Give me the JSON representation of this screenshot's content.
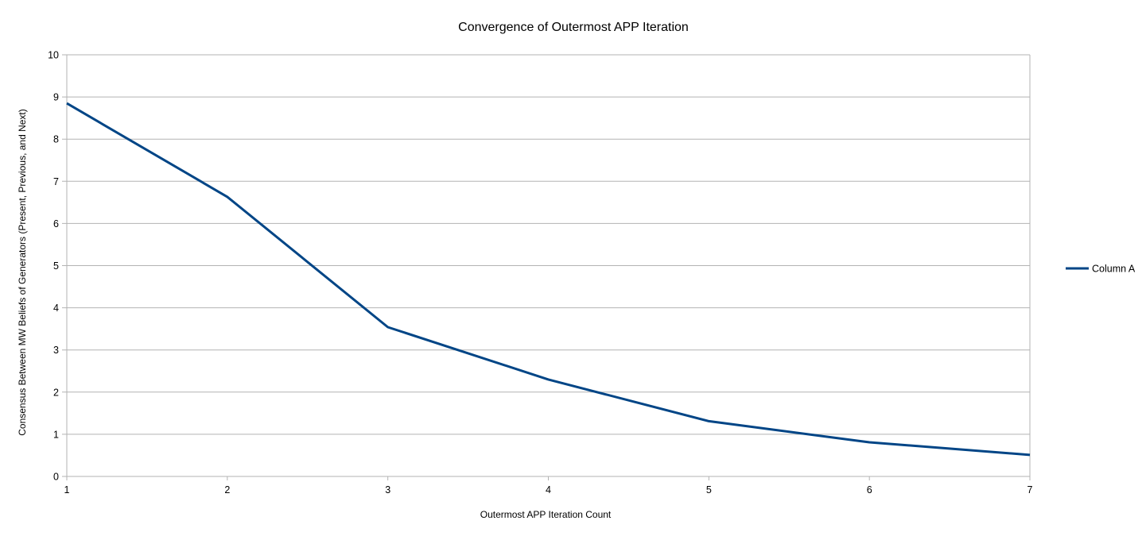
{
  "chart_data": {
    "type": "line",
    "title": "Convergence of Outermost APP Iteration",
    "xlabel": "Outermost APP Iteration Count",
    "ylabel": "Consensus Between MW Beliefs of Generators (Present, Previous, and Next)",
    "x": [
      1,
      2,
      3,
      4,
      5,
      6,
      7
    ],
    "xlim": [
      1,
      7
    ],
    "ylim": [
      0,
      10
    ],
    "x_ticks": [
      "1",
      "2",
      "3",
      "4",
      "5",
      "6",
      "7"
    ],
    "y_ticks": [
      "0",
      "1",
      "2",
      "3",
      "4",
      "5",
      "6",
      "7",
      "8",
      "9",
      "10"
    ],
    "grid": "horizontal",
    "legend_position": "right",
    "series": [
      {
        "name": "Column A",
        "color": "#004586",
        "values": [
          8.85,
          6.63,
          3.54,
          2.3,
          1.31,
          0.81,
          0.51
        ]
      }
    ]
  }
}
